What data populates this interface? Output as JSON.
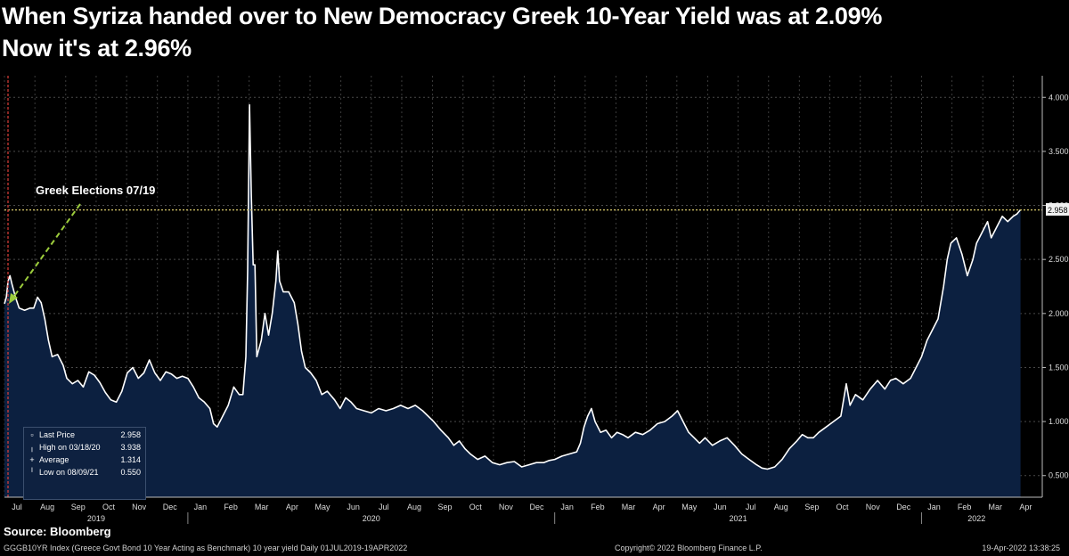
{
  "title": {
    "line1": "When Syriza handed over to New Democracy Greek 10-Year Yield was at 2.09%",
    "line2": "Now it's at 2.96%"
  },
  "annotation": {
    "label": "Greek Elections 07/19"
  },
  "legend": {
    "items": [
      {
        "icon": "▫",
        "label": "Last Price",
        "value": "2.958"
      },
      {
        "icon": "╷",
        "label": "High on 03/18/20",
        "value": "3.938"
      },
      {
        "icon": "+",
        "label": "Average",
        "value": "1.314"
      },
      {
        "icon": "╵",
        "label": "Low on 08/09/21",
        "value": "0.550"
      }
    ]
  },
  "last_price_badge": "2.958",
  "footer": {
    "source": "Source: Bloomberg",
    "description": "GGGB10YR Index (Greece Govt Bond 10 Year Acting as Benchmark) 10 year yield  Daily 01JUL2019-19APR2022",
    "copyright": "Copyright© 2022 Bloomberg Finance L.P.",
    "datestamp": "19-Apr-2022 13:38:25"
  },
  "colors": {
    "background": "#000000",
    "line": "#ffffff",
    "area": "#0c2040",
    "reference_line": "#d8c86a",
    "election_line": "#e0403a",
    "arrow": "#9ccc3c"
  },
  "chart_data": {
    "type": "area",
    "title": "Greek 10-Year Yield",
    "xlabel": "",
    "ylabel": "",
    "x_range": [
      2019.5,
      2022.3
    ],
    "ylim": [
      0.3,
      4.2
    ],
    "y_ticks": [
      0.5,
      1.0,
      1.5,
      2.0,
      2.5,
      3.0,
      3.5,
      4.0
    ],
    "y_tick_labels": [
      "0.500",
      "1.000",
      "1.500",
      "2.000",
      "2.500",
      "3.000",
      "3.500",
      "4.000"
    ],
    "reference_value": 2.958,
    "month_ticks": [
      {
        "label": "Jul",
        "t": 2019.5
      },
      {
        "label": "Aug",
        "t": 2019.583
      },
      {
        "label": "Sep",
        "t": 2019.667
      },
      {
        "label": "Oct",
        "t": 2019.75
      },
      {
        "label": "Nov",
        "t": 2019.833
      },
      {
        "label": "Dec",
        "t": 2019.917
      },
      {
        "label": "Jan",
        "t": 2020.0
      },
      {
        "label": "Feb",
        "t": 2020.083
      },
      {
        "label": "Mar",
        "t": 2020.167
      },
      {
        "label": "Apr",
        "t": 2020.25
      },
      {
        "label": "May",
        "t": 2020.333
      },
      {
        "label": "Jun",
        "t": 2020.417
      },
      {
        "label": "Jul",
        "t": 2020.5
      },
      {
        "label": "Aug",
        "t": 2020.583
      },
      {
        "label": "Sep",
        "t": 2020.667
      },
      {
        "label": "Oct",
        "t": 2020.75
      },
      {
        "label": "Nov",
        "t": 2020.833
      },
      {
        "label": "Dec",
        "t": 2020.917
      },
      {
        "label": "Jan",
        "t": 2021.0
      },
      {
        "label": "Feb",
        "t": 2021.083
      },
      {
        "label": "Mar",
        "t": 2021.167
      },
      {
        "label": "Apr",
        "t": 2021.25
      },
      {
        "label": "May",
        "t": 2021.333
      },
      {
        "label": "Jun",
        "t": 2021.417
      },
      {
        "label": "Jul",
        "t": 2021.5
      },
      {
        "label": "Aug",
        "t": 2021.583
      },
      {
        "label": "Sep",
        "t": 2021.667
      },
      {
        "label": "Oct",
        "t": 2021.75
      },
      {
        "label": "Nov",
        "t": 2021.833
      },
      {
        "label": "Dec",
        "t": 2021.917
      },
      {
        "label": "Jan",
        "t": 2022.0
      },
      {
        "label": "Feb",
        "t": 2022.083
      },
      {
        "label": "Mar",
        "t": 2022.167
      },
      {
        "label": "Apr",
        "t": 2022.25
      }
    ],
    "year_labels": [
      {
        "label": "2019",
        "t": 2019.75
      },
      {
        "label": "2020",
        "t": 2020.5
      },
      {
        "label": "2021",
        "t": 2021.5
      },
      {
        "label": "2022",
        "t": 2022.15
      }
    ],
    "year_boundaries": [
      2020.0,
      2021.0,
      2022.0
    ],
    "series": [
      {
        "name": "GGGB10YR Index",
        "points": [
          [
            2019.5,
            2.09
          ],
          [
            2019.505,
            2.15
          ],
          [
            2019.51,
            2.3
          ],
          [
            2019.515,
            2.35
          ],
          [
            2019.52,
            2.28
          ],
          [
            2019.53,
            2.15
          ],
          [
            2019.54,
            2.05
          ],
          [
            2019.555,
            2.03
          ],
          [
            2019.57,
            2.05
          ],
          [
            2019.58,
            2.05
          ],
          [
            2019.59,
            2.15
          ],
          [
            2019.6,
            2.1
          ],
          [
            2019.61,
            1.95
          ],
          [
            2019.62,
            1.75
          ],
          [
            2019.63,
            1.6
          ],
          [
            2019.645,
            1.62
          ],
          [
            2019.66,
            1.52
          ],
          [
            2019.67,
            1.4
          ],
          [
            2019.685,
            1.35
          ],
          [
            2019.7,
            1.38
          ],
          [
            2019.715,
            1.32
          ],
          [
            2019.73,
            1.46
          ],
          [
            2019.745,
            1.43
          ],
          [
            2019.76,
            1.36
          ],
          [
            2019.775,
            1.27
          ],
          [
            2019.79,
            1.2
          ],
          [
            2019.805,
            1.18
          ],
          [
            2019.82,
            1.28
          ],
          [
            2019.835,
            1.45
          ],
          [
            2019.85,
            1.5
          ],
          [
            2019.865,
            1.4
          ],
          [
            2019.88,
            1.45
          ],
          [
            2019.895,
            1.57
          ],
          [
            2019.91,
            1.45
          ],
          [
            2019.925,
            1.38
          ],
          [
            2019.94,
            1.46
          ],
          [
            2019.955,
            1.44
          ],
          [
            2019.97,
            1.4
          ],
          [
            2019.985,
            1.42
          ],
          [
            2020.0,
            1.4
          ],
          [
            2020.015,
            1.32
          ],
          [
            2020.03,
            1.22
          ],
          [
            2020.045,
            1.18
          ],
          [
            2020.06,
            1.12
          ],
          [
            2020.07,
            0.98
          ],
          [
            2020.08,
            0.95
          ],
          [
            2020.095,
            1.05
          ],
          [
            2020.11,
            1.15
          ],
          [
            2020.125,
            1.32
          ],
          [
            2020.14,
            1.25
          ],
          [
            2020.15,
            1.25
          ],
          [
            2020.158,
            1.6
          ],
          [
            2020.163,
            2.4
          ],
          [
            2020.168,
            3.93
          ],
          [
            2020.173,
            3.1
          ],
          [
            2020.178,
            2.45
          ],
          [
            2020.183,
            2.45
          ],
          [
            2020.188,
            1.6
          ],
          [
            2020.2,
            1.75
          ],
          [
            2020.21,
            2.0
          ],
          [
            2020.22,
            1.8
          ],
          [
            2020.23,
            2.0
          ],
          [
            2020.24,
            2.3
          ],
          [
            2020.245,
            2.58
          ],
          [
            2020.25,
            2.3
          ],
          [
            2020.26,
            2.2
          ],
          [
            2020.275,
            2.2
          ],
          [
            2020.29,
            2.1
          ],
          [
            2020.3,
            1.9
          ],
          [
            2020.31,
            1.65
          ],
          [
            2020.32,
            1.5
          ],
          [
            2020.335,
            1.45
          ],
          [
            2020.35,
            1.38
          ],
          [
            2020.365,
            1.25
          ],
          [
            2020.38,
            1.28
          ],
          [
            2020.4,
            1.2
          ],
          [
            2020.415,
            1.12
          ],
          [
            2020.43,
            1.22
          ],
          [
            2020.445,
            1.18
          ],
          [
            2020.46,
            1.12
          ],
          [
            2020.48,
            1.1
          ],
          [
            2020.5,
            1.08
          ],
          [
            2020.52,
            1.12
          ],
          [
            2020.54,
            1.1
          ],
          [
            2020.56,
            1.12
          ],
          [
            2020.58,
            1.15
          ],
          [
            2020.6,
            1.12
          ],
          [
            2020.62,
            1.15
          ],
          [
            2020.64,
            1.1
          ],
          [
            2020.655,
            1.05
          ],
          [
            2020.67,
            1.0
          ],
          [
            2020.69,
            0.92
          ],
          [
            2020.71,
            0.85
          ],
          [
            2020.725,
            0.78
          ],
          [
            2020.74,
            0.82
          ],
          [
            2020.755,
            0.75
          ],
          [
            2020.77,
            0.7
          ],
          [
            2020.79,
            0.65
          ],
          [
            2020.81,
            0.68
          ],
          [
            2020.83,
            0.62
          ],
          [
            2020.85,
            0.6
          ],
          [
            2020.87,
            0.62
          ],
          [
            2020.89,
            0.63
          ],
          [
            2020.91,
            0.58
          ],
          [
            2020.93,
            0.6
          ],
          [
            2020.95,
            0.62
          ],
          [
            2020.97,
            0.62
          ],
          [
            2020.985,
            0.64
          ],
          [
            2021.0,
            0.65
          ],
          [
            2021.02,
            0.68
          ],
          [
            2021.04,
            0.7
          ],
          [
            2021.06,
            0.72
          ],
          [
            2021.07,
            0.8
          ],
          [
            2021.08,
            0.95
          ],
          [
            2021.09,
            1.05
          ],
          [
            2021.1,
            1.12
          ],
          [
            2021.11,
            1.0
          ],
          [
            2021.125,
            0.9
          ],
          [
            2021.14,
            0.92
          ],
          [
            2021.155,
            0.85
          ],
          [
            2021.17,
            0.9
          ],
          [
            2021.185,
            0.88
          ],
          [
            2021.2,
            0.85
          ],
          [
            2021.22,
            0.9
          ],
          [
            2021.24,
            0.88
          ],
          [
            2021.26,
            0.92
          ],
          [
            2021.28,
            0.98
          ],
          [
            2021.3,
            1.0
          ],
          [
            2021.32,
            1.05
          ],
          [
            2021.335,
            1.1
          ],
          [
            2021.35,
            1.0
          ],
          [
            2021.365,
            0.9
          ],
          [
            2021.38,
            0.85
          ],
          [
            2021.395,
            0.8
          ],
          [
            2021.41,
            0.85
          ],
          [
            2021.43,
            0.78
          ],
          [
            2021.45,
            0.82
          ],
          [
            2021.47,
            0.85
          ],
          [
            2021.49,
            0.78
          ],
          [
            2021.51,
            0.7
          ],
          [
            2021.53,
            0.65
          ],
          [
            2021.55,
            0.6
          ],
          [
            2021.565,
            0.57
          ],
          [
            2021.58,
            0.56
          ],
          [
            2021.6,
            0.58
          ],
          [
            2021.62,
            0.65
          ],
          [
            2021.64,
            0.75
          ],
          [
            2021.66,
            0.82
          ],
          [
            2021.675,
            0.88
          ],
          [
            2021.69,
            0.85
          ],
          [
            2021.705,
            0.85
          ],
          [
            2021.72,
            0.9
          ],
          [
            2021.74,
            0.95
          ],
          [
            2021.76,
            1.0
          ],
          [
            2021.78,
            1.05
          ],
          [
            2021.795,
            1.35
          ],
          [
            2021.805,
            1.15
          ],
          [
            2021.82,
            1.25
          ],
          [
            2021.84,
            1.2
          ],
          [
            2021.86,
            1.3
          ],
          [
            2021.88,
            1.38
          ],
          [
            2021.9,
            1.3
          ],
          [
            2021.915,
            1.38
          ],
          [
            2021.93,
            1.4
          ],
          [
            2021.95,
            1.35
          ],
          [
            2021.97,
            1.4
          ],
          [
            2021.985,
            1.5
          ],
          [
            2022.0,
            1.6
          ],
          [
            2022.015,
            1.75
          ],
          [
            2022.03,
            1.85
          ],
          [
            2022.045,
            1.95
          ],
          [
            2022.06,
            2.25
          ],
          [
            2022.07,
            2.5
          ],
          [
            2022.08,
            2.65
          ],
          [
            2022.095,
            2.7
          ],
          [
            2022.11,
            2.55
          ],
          [
            2022.125,
            2.35
          ],
          [
            2022.14,
            2.5
          ],
          [
            2022.15,
            2.65
          ],
          [
            2022.165,
            2.75
          ],
          [
            2022.18,
            2.85
          ],
          [
            2022.19,
            2.7
          ],
          [
            2022.205,
            2.8
          ],
          [
            2022.22,
            2.9
          ],
          [
            2022.235,
            2.85
          ],
          [
            2022.25,
            2.9
          ],
          [
            2022.26,
            2.92
          ],
          [
            2022.27,
            2.96
          ]
        ]
      }
    ]
  }
}
